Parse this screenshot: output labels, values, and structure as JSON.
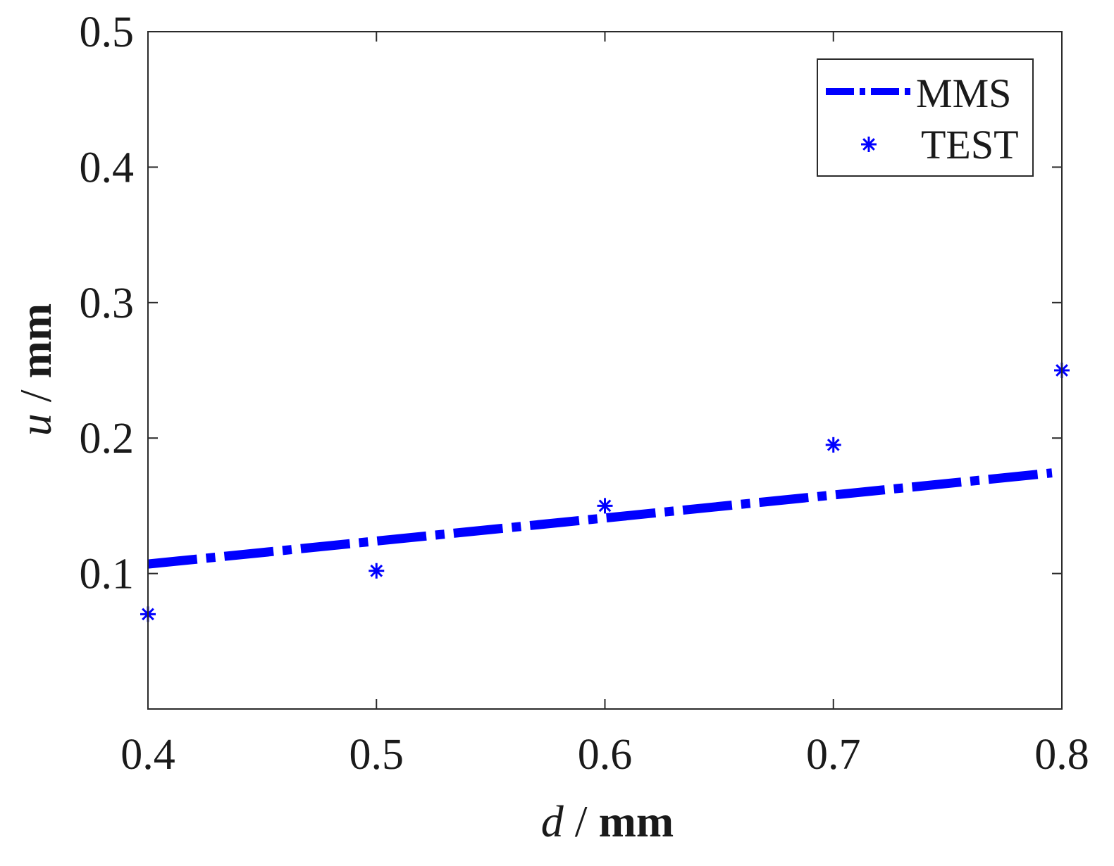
{
  "chart_data": {
    "type": "line",
    "title": "",
    "xlabel": {
      "var": "d",
      "sep": " / ",
      "unit": "mm"
    },
    "ylabel": {
      "var": "u",
      "sep": " / ",
      "unit": "mm"
    },
    "xlim": [
      0.4,
      0.8
    ],
    "ylim": [
      0.0,
      0.5
    ],
    "xticks": [
      0.4,
      0.5,
      0.6,
      0.7,
      0.8
    ],
    "yticks": [
      0.1,
      0.2,
      0.3,
      0.4,
      0.5
    ],
    "xtick_labels": [
      "0.4",
      "0.5",
      "0.6",
      "0.7",
      "0.8"
    ],
    "ytick_labels": [
      "0.1",
      "0.2",
      "0.3",
      "0.4",
      "0.5"
    ],
    "grid": false,
    "legend_position": "top-right",
    "series": [
      {
        "name": "MMS",
        "style": "dash-dot",
        "color": "#0000ff",
        "x": [
          0.4,
          0.8
        ],
        "y": [
          0.107,
          0.175
        ]
      },
      {
        "name": "TEST",
        "style": "asterisk",
        "color": "#0000ff",
        "x": [
          0.4,
          0.5,
          0.6,
          0.7,
          0.8
        ],
        "y": [
          0.07,
          0.102,
          0.15,
          0.195,
          0.25
        ]
      }
    ]
  }
}
